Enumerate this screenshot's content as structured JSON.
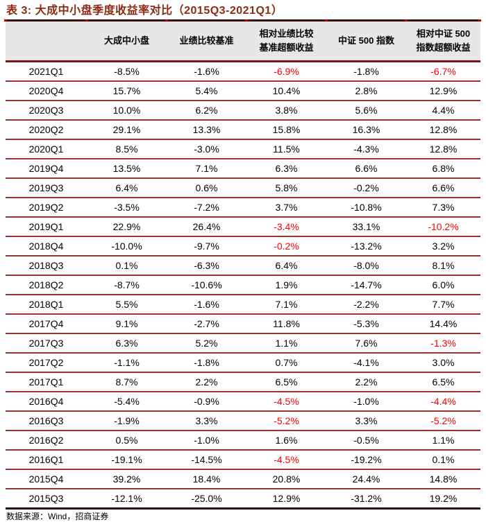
{
  "page": {
    "title": "表 3: 大成中小盘季度收益率对比（2015Q3-2021Q1）",
    "source_note": "数据来源：Wind，招商证券"
  },
  "colors": {
    "title": "#8C2A12",
    "header_background": "#E7E7E7",
    "table_top_border": "#330D0B",
    "header_divider": "#7A1416",
    "row_divider": "#963230",
    "table_bottom_border": "#241114",
    "negative_excess": "#FF0000",
    "tick": "#C00000"
  },
  "table": {
    "header": [
      {
        "line1": ""
      },
      {
        "line1": "大成中小盘"
      },
      {
        "line1": "业绩比较基准"
      },
      {
        "line1": "相对业绩比较",
        "line2": "基准超额收益"
      },
      {
        "line1": "中证 500 指数"
      },
      {
        "line1": "相对中证 500",
        "line2": "指数超额收益"
      }
    ],
    "red_value_columns": [
      2,
      4
    ],
    "rows": [
      {
        "quarter": "2021Q1",
        "values": [
          "-8.5%",
          "-1.6%",
          "-6.9%",
          "-1.8%",
          "-6.7%"
        ]
      },
      {
        "quarter": "2020Q4",
        "values": [
          "15.7%",
          "5.4%",
          "10.4%",
          "2.8%",
          "12.9%"
        ]
      },
      {
        "quarter": "2020Q3",
        "values": [
          "10.0%",
          "6.2%",
          "3.8%",
          "5.6%",
          "4.4%"
        ]
      },
      {
        "quarter": "2020Q2",
        "values": [
          "29.1%",
          "13.3%",
          "15.8%",
          "16.3%",
          "12.8%"
        ]
      },
      {
        "quarter": "2020Q1",
        "values": [
          "8.5%",
          "-3.0%",
          "11.5%",
          "-4.3%",
          "12.8%"
        ]
      },
      {
        "quarter": "2019Q4",
        "values": [
          "13.5%",
          "7.1%",
          "6.3%",
          "6.6%",
          "6.8%"
        ]
      },
      {
        "quarter": "2019Q3",
        "values": [
          "6.4%",
          "0.6%",
          "5.8%",
          "-0.2%",
          "6.6%"
        ]
      },
      {
        "quarter": "2019Q2",
        "values": [
          "-3.5%",
          "-7.2%",
          "3.7%",
          "-10.8%",
          "7.3%"
        ]
      },
      {
        "quarter": "2019Q1",
        "values": [
          "22.9%",
          "26.4%",
          "-3.4%",
          "33.1%",
          "-10.2%"
        ]
      },
      {
        "quarter": "2018Q4",
        "values": [
          "-10.0%",
          "-9.7%",
          "-0.2%",
          "-13.2%",
          "3.2%"
        ]
      },
      {
        "quarter": "2018Q3",
        "values": [
          "0.1%",
          "-6.3%",
          "6.4%",
          "-8.0%",
          "8.1%"
        ]
      },
      {
        "quarter": "2018Q2",
        "values": [
          "-8.7%",
          "-10.6%",
          "1.9%",
          "-14.7%",
          "6.0%"
        ]
      },
      {
        "quarter": "2018Q1",
        "values": [
          "5.5%",
          "-1.6%",
          "7.1%",
          "-2.2%",
          "7.7%"
        ]
      },
      {
        "quarter": "2017Q4",
        "values": [
          "9.1%",
          "-2.7%",
          "11.8%",
          "-5.3%",
          "14.4%"
        ]
      },
      {
        "quarter": "2017Q3",
        "values": [
          "6.3%",
          "5.2%",
          "1.1%",
          "7.6%",
          "-1.3%"
        ]
      },
      {
        "quarter": "2017Q2",
        "values": [
          "-1.1%",
          "-1.8%",
          "0.7%",
          "-4.1%",
          "3.0%"
        ]
      },
      {
        "quarter": "2017Q1",
        "values": [
          "8.7%",
          "2.2%",
          "6.5%",
          "2.2%",
          "6.5%"
        ]
      },
      {
        "quarter": "2016Q4",
        "values": [
          "-5.4%",
          "-0.9%",
          "-4.5%",
          "-1.0%",
          "-4.4%"
        ]
      },
      {
        "quarter": "2016Q3",
        "values": [
          "-1.9%",
          "3.3%",
          "-5.2%",
          "3.3%",
          "-5.2%"
        ]
      },
      {
        "quarter": "2016Q2",
        "values": [
          "0.5%",
          "-1.0%",
          "1.6%",
          "-0.5%",
          "1.1%"
        ]
      },
      {
        "quarter": "2016Q1",
        "values": [
          "-19.1%",
          "-14.5%",
          "-4.5%",
          "-19.2%",
          "0.1%"
        ]
      },
      {
        "quarter": "2015Q4",
        "values": [
          "39.2%",
          "18.4%",
          "20.8%",
          "24.4%",
          "14.8%"
        ]
      },
      {
        "quarter": "2015Q3",
        "values": [
          "-12.1%",
          "-25.0%",
          "12.9%",
          "-31.2%",
          "19.2%"
        ]
      }
    ]
  }
}
